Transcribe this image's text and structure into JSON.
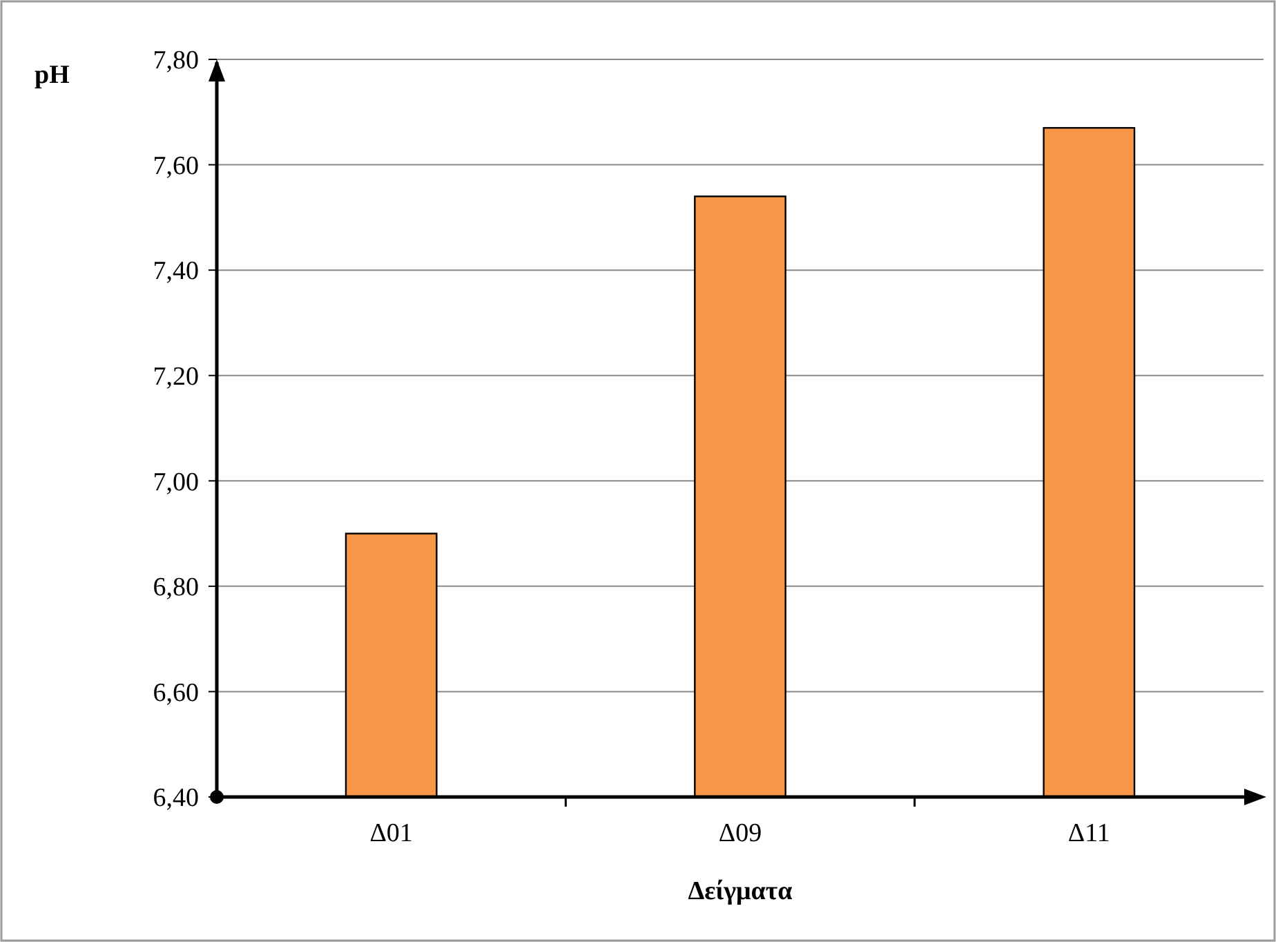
{
  "chart_data": {
    "type": "bar",
    "xlabel": "Δείγματα",
    "ylabel": "pH",
    "categories": [
      "Δ01",
      "Δ09",
      "Δ11"
    ],
    "values": [
      6.9,
      7.54,
      7.67
    ],
    "color": "#f79646",
    "ylim": [
      6.4,
      7.8
    ],
    "yticks": [
      {
        "value": 6.4,
        "label": "6,40"
      },
      {
        "value": 6.6,
        "label": "6,60"
      },
      {
        "value": 6.8,
        "label": "6,80"
      },
      {
        "value": 7.0,
        "label": "7,00"
      },
      {
        "value": 7.2,
        "label": "7,20"
      },
      {
        "value": 7.4,
        "label": "7,40"
      },
      {
        "value": 7.6,
        "label": "7,60"
      },
      {
        "value": 7.8,
        "label": "7,80"
      }
    ],
    "grid": "y"
  }
}
